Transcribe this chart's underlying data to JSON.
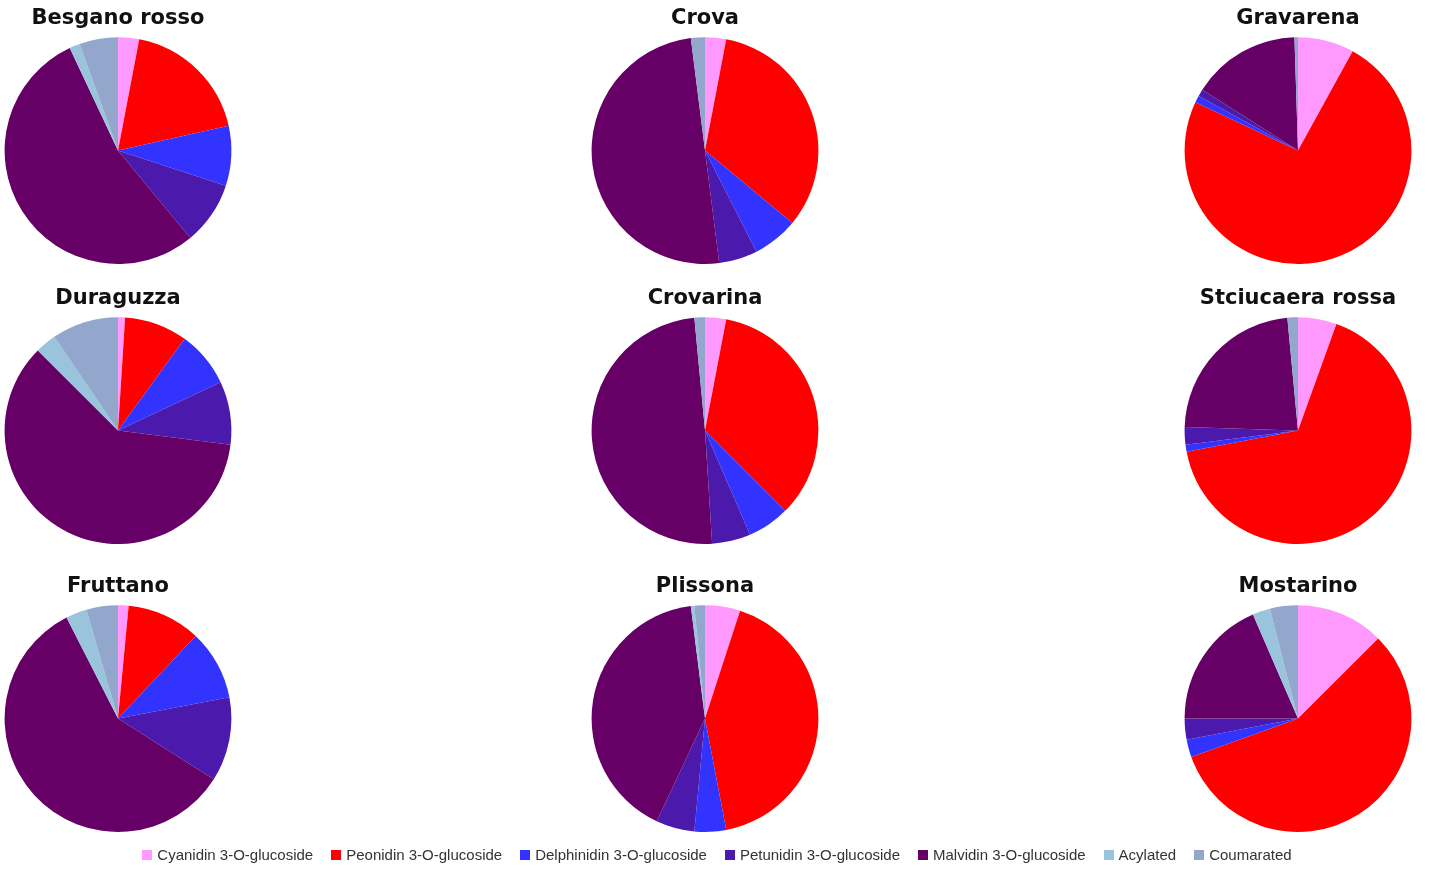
{
  "chart_data": [
    {
      "type": "pie",
      "title": "Besgano rosso",
      "categories": [
        "Cyanidin 3-O-glucoside",
        "Peonidin 3-O-glucoside",
        "Delphinidin 3-O-glucoside",
        "Petunidin 3-O-glucoside",
        "Malvidin 3-O-glucoside",
        "Acylated",
        "Coumarated"
      ],
      "values": [
        3,
        18.5,
        8.5,
        9,
        54,
        1.5,
        5.5
      ],
      "colors": [
        "#ff99ff",
        "#ff0000",
        "#3333ff",
        "#4b1aad",
        "#660066",
        "#99c4dc",
        "#93a6cc"
      ],
      "legend": "bottom"
    },
    {
      "type": "pie",
      "title": "Crova",
      "categories": [
        null,
        null,
        null,
        null,
        null,
        null,
        null
      ],
      "values": [
        3,
        33,
        6.5,
        5.5,
        50,
        0,
        2
      ],
      "colors": [
        "#ff99ff",
        "#ff0000",
        "#3333ff",
        "#4b1aad",
        "#660066",
        "#99c4dc",
        "#93a6cc"
      ]
    },
    {
      "type": "pie",
      "title": "Gravarena",
      "categories": [
        null,
        null,
        null,
        null,
        null,
        null,
        null
      ],
      "values": [
        8,
        74,
        1,
        1,
        15.5,
        0,
        0.5
      ],
      "colors": [
        "#ff99ff",
        "#ff0000",
        "#3333ff",
        "#4b1aad",
        "#660066",
        "#99c4dc",
        "#93a6cc"
      ]
    },
    {
      "type": "pie",
      "title": "Duraguzza",
      "categories": [
        null,
        null,
        null,
        null,
        null,
        null,
        null
      ],
      "values": [
        1,
        9,
        8,
        9,
        60.5,
        3,
        9.5
      ],
      "colors": [
        "#ff99ff",
        "#ff0000",
        "#3333ff",
        "#4b1aad",
        "#660066",
        "#99c4dc",
        "#93a6cc"
      ]
    },
    {
      "type": "pie",
      "title": "Crovarina",
      "categories": [
        null,
        null,
        null,
        null,
        null,
        null,
        null
      ],
      "values": [
        3,
        34.5,
        6,
        5.5,
        49.5,
        0,
        1.5
      ],
      "colors": [
        "#ff99ff",
        "#ff0000",
        "#3333ff",
        "#4b1aad",
        "#660066",
        "#99c4dc",
        "#93a6cc"
      ]
    },
    {
      "type": "pie",
      "title": "Stciucaera rossa",
      "categories": [
        null,
        null,
        null,
        null,
        null,
        null,
        null
      ],
      "values": [
        5.5,
        66.5,
        1,
        2.5,
        23,
        0,
        1.5
      ],
      "colors": [
        "#ff99ff",
        "#ff0000",
        "#3333ff",
        "#4b1aad",
        "#660066",
        "#99c4dc",
        "#93a6cc"
      ]
    },
    {
      "type": "pie",
      "title": "Fruttano",
      "categories": [
        null,
        null,
        null,
        null,
        null,
        null,
        null
      ],
      "values": [
        1.5,
        10.5,
        10,
        12,
        58.5,
        3,
        4.5
      ],
      "colors": [
        "#ff99ff",
        "#ff0000",
        "#3333ff",
        "#4b1aad",
        "#660066",
        "#99c4dc",
        "#93a6cc"
      ]
    },
    {
      "type": "pie",
      "title": "Plissona",
      "categories": [
        null,
        null,
        null,
        null,
        null,
        null,
        null
      ],
      "values": [
        5,
        42,
        4.5,
        5.5,
        41,
        0.5,
        1.5
      ],
      "colors": [
        "#ff99ff",
        "#ff0000",
        "#3333ff",
        "#4b1aad",
        "#660066",
        "#99c4dc",
        "#93a6cc"
      ]
    },
    {
      "type": "pie",
      "title": "Mostarino",
      "categories": [
        null,
        null,
        null,
        null,
        null,
        null,
        null
      ],
      "values": [
        12.5,
        57,
        2.5,
        3,
        18.5,
        2.5,
        4
      ],
      "colors": [
        "#ff99ff",
        "#ff0000",
        "#3333ff",
        "#4b1aad",
        "#660066",
        "#99c4dc",
        "#93a6cc"
      ]
    }
  ]
}
